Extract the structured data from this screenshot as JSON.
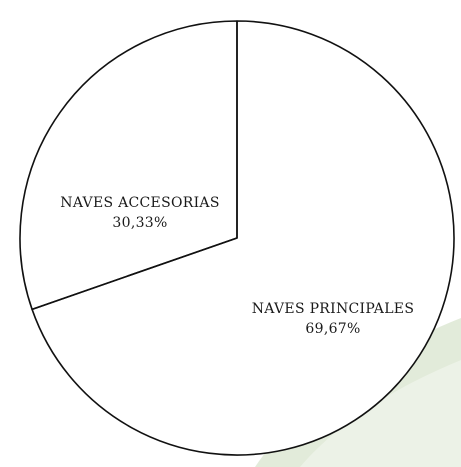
{
  "chart_data": {
    "type": "pie",
    "title": "",
    "slices": [
      {
        "label": "NAVES PRINCIPALES",
        "value": 69.67,
        "value_label": "69,67%"
      },
      {
        "label": "NAVES ACCESORIAS",
        "value": 30.33,
        "value_label": "30,33%"
      }
    ],
    "unit": "%",
    "fill_color": "#ffffff",
    "stroke_color": "#111111",
    "watermark_color": "#dfe9d6"
  }
}
